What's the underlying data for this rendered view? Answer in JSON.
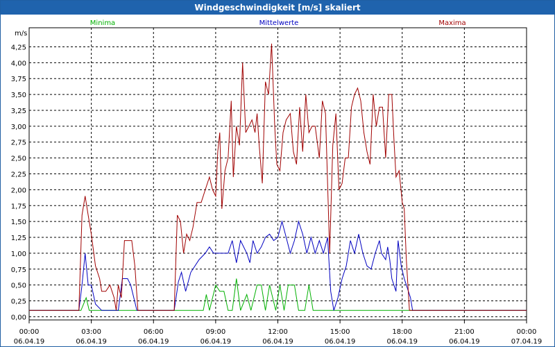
{
  "window": {
    "title": "Windgeschwindigkeit [m/s] skaliert"
  },
  "colors": {
    "minima": "#00b000",
    "mittelwerte": "#0000c0",
    "maxima": "#a00000",
    "titlebar": "#1f63ad"
  },
  "chart_data": {
    "type": "line",
    "title": "Windgeschwindigkeit [m/s] skaliert",
    "ylabel": "m/s",
    "xlabel": "",
    "ylim": [
      -0.05,
      4.55
    ],
    "xlim_hours": [
      0,
      24
    ],
    "grid": true,
    "legend_placement": "top",
    "y_ticks": [
      "0,00",
      "0,25",
      "0,50",
      "0,75",
      "1,00",
      "1,25",
      "1,50",
      "1,75",
      "2,00",
      "2,25",
      "2,50",
      "2,75",
      "3,00",
      "3,25",
      "3,50",
      "3,75",
      "4,00",
      "4,25"
    ],
    "x_ticks": [
      {
        "time": "00:00",
        "date": "06.04.19"
      },
      {
        "time": "03:00",
        "date": "06.04.19"
      },
      {
        "time": "06:00",
        "date": "06.04.19"
      },
      {
        "time": "09:00",
        "date": "06.04.19"
      },
      {
        "time": "12:00",
        "date": "06.04.19"
      },
      {
        "time": "15:00",
        "date": "06.04.19"
      },
      {
        "time": "18:00",
        "date": "06.04.19"
      },
      {
        "time": "21:00",
        "date": "06.04.19"
      },
      {
        "time": "00:00",
        "date": "07.04.19"
      }
    ],
    "series": [
      {
        "name": "Minima",
        "color": "#00b000",
        "points": [
          [
            0,
            0.1
          ],
          [
            2.5,
            0.1
          ],
          [
            2.75,
            0.3
          ],
          [
            2.9,
            0.1
          ],
          [
            8.4,
            0.1
          ],
          [
            8.55,
            0.35
          ],
          [
            8.7,
            0.1
          ],
          [
            9.0,
            0.5
          ],
          [
            9.2,
            0.4
          ],
          [
            9.4,
            0.4
          ],
          [
            9.6,
            0.1
          ],
          [
            9.8,
            0.1
          ],
          [
            10.0,
            0.6
          ],
          [
            10.2,
            0.1
          ],
          [
            10.5,
            0.35
          ],
          [
            10.7,
            0.1
          ],
          [
            11.0,
            0.5
          ],
          [
            11.2,
            0.5
          ],
          [
            11.4,
            0.1
          ],
          [
            11.6,
            0.5
          ],
          [
            11.9,
            0.1
          ],
          [
            12.1,
            0.5
          ],
          [
            12.3,
            0.1
          ],
          [
            12.5,
            0.5
          ],
          [
            12.8,
            0.5
          ],
          [
            13.0,
            0.1
          ],
          [
            13.3,
            0.1
          ],
          [
            13.5,
            0.5
          ],
          [
            13.7,
            0.1
          ],
          [
            18.0,
            0.1
          ],
          [
            24,
            0.1
          ]
        ]
      },
      {
        "name": "Mittelwerte",
        "color": "#0000c0",
        "points": [
          [
            0,
            0.1
          ],
          [
            2.4,
            0.1
          ],
          [
            2.55,
            0.5
          ],
          [
            2.7,
            1.0
          ],
          [
            2.85,
            0.5
          ],
          [
            3.0,
            0.5
          ],
          [
            3.2,
            0.2
          ],
          [
            3.5,
            0.1
          ],
          [
            4.3,
            0.1
          ],
          [
            4.5,
            0.6
          ],
          [
            4.75,
            0.6
          ],
          [
            4.9,
            0.5
          ],
          [
            5.2,
            0.1
          ],
          [
            7.0,
            0.1
          ],
          [
            7.2,
            0.55
          ],
          [
            7.35,
            0.7
          ],
          [
            7.55,
            0.4
          ],
          [
            7.8,
            0.7
          ],
          [
            8.2,
            0.9
          ],
          [
            8.5,
            1.0
          ],
          [
            8.7,
            1.1
          ],
          [
            8.9,
            1.0
          ],
          [
            9.3,
            1.0
          ],
          [
            9.6,
            1.0
          ],
          [
            9.8,
            1.2
          ],
          [
            10.0,
            0.85
          ],
          [
            10.2,
            1.2
          ],
          [
            10.5,
            1.0
          ],
          [
            10.65,
            0.85
          ],
          [
            10.8,
            1.2
          ],
          [
            11.0,
            1.0
          ],
          [
            11.2,
            1.1
          ],
          [
            11.4,
            1.25
          ],
          [
            11.6,
            1.3
          ],
          [
            11.8,
            1.2
          ],
          [
            12.0,
            1.25
          ],
          [
            12.2,
            1.5
          ],
          [
            12.4,
            1.25
          ],
          [
            12.6,
            1.0
          ],
          [
            12.8,
            1.2
          ],
          [
            13.0,
            1.5
          ],
          [
            13.2,
            1.3
          ],
          [
            13.4,
            1.0
          ],
          [
            13.6,
            1.25
          ],
          [
            13.8,
            1.0
          ],
          [
            14.0,
            1.2
          ],
          [
            14.2,
            1.0
          ],
          [
            14.4,
            1.25
          ],
          [
            14.55,
            0.4
          ],
          [
            14.7,
            0.1
          ],
          [
            14.9,
            0.3
          ],
          [
            15.1,
            0.6
          ],
          [
            15.3,
            0.8
          ],
          [
            15.5,
            1.2
          ],
          [
            15.7,
            1.0
          ],
          [
            15.9,
            1.3
          ],
          [
            16.1,
            1.0
          ],
          [
            16.3,
            0.8
          ],
          [
            16.5,
            0.75
          ],
          [
            16.7,
            1.0
          ],
          [
            16.9,
            1.2
          ],
          [
            17.0,
            1.0
          ],
          [
            17.2,
            0.9
          ],
          [
            17.3,
            1.1
          ],
          [
            17.4,
            0.9
          ],
          [
            17.5,
            0.6
          ],
          [
            17.6,
            0.5
          ],
          [
            17.7,
            0.4
          ],
          [
            17.8,
            1.2
          ],
          [
            17.95,
            0.8
          ],
          [
            18.1,
            0.6
          ],
          [
            18.2,
            0.5
          ],
          [
            18.3,
            0.4
          ],
          [
            18.4,
            0.3
          ],
          [
            18.5,
            0.1
          ],
          [
            24,
            0.1
          ]
        ]
      },
      {
        "name": "Maxima",
        "color": "#a00000",
        "points": [
          [
            0,
            0.1
          ],
          [
            2.4,
            0.1
          ],
          [
            2.55,
            1.6
          ],
          [
            2.7,
            1.9
          ],
          [
            2.85,
            1.6
          ],
          [
            3.0,
            1.3
          ],
          [
            3.2,
            0.8
          ],
          [
            3.4,
            0.6
          ],
          [
            3.5,
            0.4
          ],
          [
            3.7,
            0.4
          ],
          [
            3.9,
            0.5
          ],
          [
            4.1,
            0.3
          ],
          [
            4.2,
            0.1
          ],
          [
            4.3,
            0.5
          ],
          [
            4.45,
            0.3
          ],
          [
            4.6,
            1.2
          ],
          [
            4.95,
            1.2
          ],
          [
            5.1,
            0.8
          ],
          [
            5.25,
            0.1
          ],
          [
            7.0,
            0.1
          ],
          [
            7.15,
            1.6
          ],
          [
            7.3,
            1.5
          ],
          [
            7.45,
            1.0
          ],
          [
            7.6,
            1.3
          ],
          [
            7.75,
            1.2
          ],
          [
            7.9,
            1.4
          ],
          [
            8.1,
            1.8
          ],
          [
            8.3,
            1.8
          ],
          [
            8.5,
            2.0
          ],
          [
            8.7,
            2.2
          ],
          [
            8.85,
            2.0
          ],
          [
            9.0,
            1.9
          ],
          [
            9.1,
            2.6
          ],
          [
            9.2,
            2.9
          ],
          [
            9.3,
            1.7
          ],
          [
            9.45,
            2.3
          ],
          [
            9.6,
            2.5
          ],
          [
            9.75,
            3.4
          ],
          [
            9.85,
            2.2
          ],
          [
            10.0,
            3.0
          ],
          [
            10.15,
            2.7
          ],
          [
            10.3,
            4.0
          ],
          [
            10.45,
            2.9
          ],
          [
            10.6,
            3.0
          ],
          [
            10.75,
            3.1
          ],
          [
            10.9,
            2.9
          ],
          [
            11.0,
            3.2
          ],
          [
            11.1,
            2.7
          ],
          [
            11.25,
            2.1
          ],
          [
            11.4,
            3.7
          ],
          [
            11.55,
            3.5
          ],
          [
            11.7,
            4.3
          ],
          [
            11.85,
            3.0
          ],
          [
            11.95,
            2.4
          ],
          [
            12.1,
            2.3
          ],
          [
            12.25,
            2.9
          ],
          [
            12.4,
            3.1
          ],
          [
            12.6,
            3.2
          ],
          [
            12.75,
            2.6
          ],
          [
            12.9,
            2.4
          ],
          [
            13.05,
            3.3
          ],
          [
            13.2,
            2.6
          ],
          [
            13.35,
            3.5
          ],
          [
            13.5,
            2.9
          ],
          [
            13.65,
            3.0
          ],
          [
            13.8,
            3.0
          ],
          [
            14.0,
            2.5
          ],
          [
            14.15,
            3.4
          ],
          [
            14.3,
            3.2
          ],
          [
            14.4,
            2.1
          ],
          [
            14.5,
            1.0
          ],
          [
            14.65,
            2.7
          ],
          [
            14.8,
            3.2
          ],
          [
            14.95,
            2.0
          ],
          [
            15.1,
            2.1
          ],
          [
            15.25,
            2.5
          ],
          [
            15.4,
            2.5
          ],
          [
            15.55,
            3.3
          ],
          [
            15.7,
            3.5
          ],
          [
            15.85,
            3.6
          ],
          [
            16.0,
            3.4
          ],
          [
            16.15,
            2.9
          ],
          [
            16.3,
            2.6
          ],
          [
            16.45,
            2.4
          ],
          [
            16.6,
            3.5
          ],
          [
            16.75,
            3.0
          ],
          [
            16.9,
            3.3
          ],
          [
            17.05,
            3.3
          ],
          [
            17.2,
            2.5
          ],
          [
            17.35,
            3.5
          ],
          [
            17.5,
            3.5
          ],
          [
            17.6,
            2.8
          ],
          [
            17.7,
            2.2
          ],
          [
            17.85,
            2.3
          ],
          [
            18.0,
            1.8
          ],
          [
            18.1,
            1.7
          ],
          [
            18.2,
            0.9
          ],
          [
            18.35,
            0.1
          ],
          [
            24,
            0.1
          ]
        ]
      }
    ]
  }
}
